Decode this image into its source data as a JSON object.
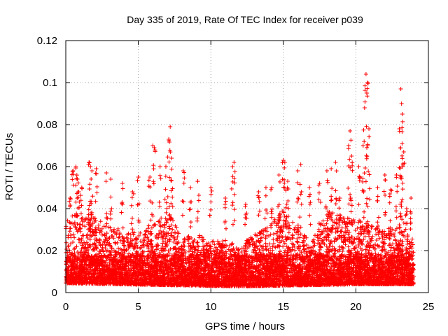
{
  "chart_data": {
    "type": "scatter",
    "title": "Day 335 of 2019, Rate Of TEC Index for receiver p039",
    "xlabel": "GPS time / hours",
    "ylabel": "ROTI / TECUs",
    "xlim": [
      0,
      25
    ],
    "ylim": [
      0,
      0.12
    ],
    "x_ticks": [
      0,
      5,
      10,
      15,
      20,
      25
    ],
    "x_tick_labels": [
      "0",
      "5",
      "10",
      "15",
      "20",
      "25"
    ],
    "y_ticks": [
      0,
      0.02,
      0.04,
      0.06,
      0.08,
      0.1,
      0.12
    ],
    "y_tick_labels": [
      "0",
      "0.02",
      "0.04",
      "0.06",
      "0.08",
      "0.1",
      "0.12"
    ],
    "grid": true,
    "marker": "+",
    "marker_color": "#ff0000",
    "grid_color": "#a0a0a0",
    "series": [
      {
        "name": "ROTI",
        "points": [
          [
            0.3,
            0.045
          ],
          [
            0.5,
            0.058
          ],
          [
            0.7,
            0.06
          ],
          [
            0.8,
            0.054
          ],
          [
            0.9,
            0.048
          ],
          [
            1.1,
            0.05
          ],
          [
            1.6,
            0.062
          ],
          [
            1.7,
            0.06
          ],
          [
            1.8,
            0.058
          ],
          [
            2.1,
            0.059
          ],
          [
            2.8,
            0.057
          ],
          [
            3.1,
            0.054
          ],
          [
            3.9,
            0.052
          ],
          [
            4.6,
            0.048
          ],
          [
            5.0,
            0.055
          ],
          [
            5.8,
            0.055
          ],
          [
            6.0,
            0.07
          ],
          [
            6.1,
            0.069
          ],
          [
            6.5,
            0.06
          ],
          [
            6.9,
            0.06
          ],
          [
            7.1,
            0.073
          ],
          [
            7.2,
            0.079
          ],
          [
            7.3,
            0.064
          ],
          [
            8.1,
            0.058
          ],
          [
            8.6,
            0.05
          ],
          [
            9.1,
            0.053
          ],
          [
            10.0,
            0.05
          ],
          [
            11.0,
            0.045
          ],
          [
            11.5,
            0.06
          ],
          [
            11.6,
            0.062
          ],
          [
            12.4,
            0.042
          ],
          [
            13.3,
            0.048
          ],
          [
            13.8,
            0.05
          ],
          [
            14.2,
            0.05
          ],
          [
            14.7,
            0.056
          ],
          [
            15.0,
            0.063
          ],
          [
            15.1,
            0.062
          ],
          [
            15.3,
            0.053
          ],
          [
            16.0,
            0.058
          ],
          [
            16.2,
            0.061
          ],
          [
            16.8,
            0.05
          ],
          [
            17.5,
            0.052
          ],
          [
            18.0,
            0.058
          ],
          [
            18.3,
            0.059
          ],
          [
            18.6,
            0.062
          ],
          [
            18.9,
            0.045
          ],
          [
            19.5,
            0.07
          ],
          [
            19.6,
            0.077
          ],
          [
            19.7,
            0.065
          ],
          [
            20.2,
            0.06
          ],
          [
            20.5,
            0.07
          ],
          [
            20.6,
            0.088
          ],
          [
            20.7,
            0.104
          ],
          [
            20.8,
            0.1
          ],
          [
            20.75,
            0.095
          ],
          [
            20.9,
            0.078
          ],
          [
            21.5,
            0.05
          ],
          [
            22.0,
            0.056
          ],
          [
            22.4,
            0.049
          ],
          [
            22.8,
            0.056
          ],
          [
            23.0,
            0.078
          ],
          [
            23.1,
            0.097
          ],
          [
            23.2,
            0.085
          ],
          [
            23.15,
            0.09
          ],
          [
            23.3,
            0.067
          ],
          [
            23.5,
            0.04
          ],
          [
            23.8,
            0.045
          ]
        ],
        "density_envelope": [
          [
            0.0,
            0.035
          ],
          [
            1.0,
            0.038
          ],
          [
            2.0,
            0.036
          ],
          [
            3.0,
            0.032
          ],
          [
            4.0,
            0.03
          ],
          [
            5.0,
            0.028
          ],
          [
            6.0,
            0.032
          ],
          [
            7.0,
            0.04
          ],
          [
            8.0,
            0.026
          ],
          [
            9.0,
            0.028
          ],
          [
            10.0,
            0.025
          ],
          [
            11.0,
            0.025
          ],
          [
            12.0,
            0.022
          ],
          [
            13.0,
            0.028
          ],
          [
            14.0,
            0.032
          ],
          [
            15.0,
            0.04
          ],
          [
            16.0,
            0.03
          ],
          [
            17.0,
            0.025
          ],
          [
            18.0,
            0.04
          ],
          [
            19.0,
            0.036
          ],
          [
            20.0,
            0.035
          ],
          [
            21.0,
            0.032
          ],
          [
            22.0,
            0.03
          ],
          [
            23.0,
            0.033
          ],
          [
            24.0,
            0.025
          ]
        ],
        "baseline": [
          [
            0.0,
            0.009
          ],
          [
            4.0,
            0.008
          ],
          [
            8.0,
            0.007
          ],
          [
            12.0,
            0.006
          ],
          [
            16.0,
            0.007
          ],
          [
            20.0,
            0.008
          ],
          [
            24.0,
            0.008
          ]
        ]
      }
    ]
  }
}
